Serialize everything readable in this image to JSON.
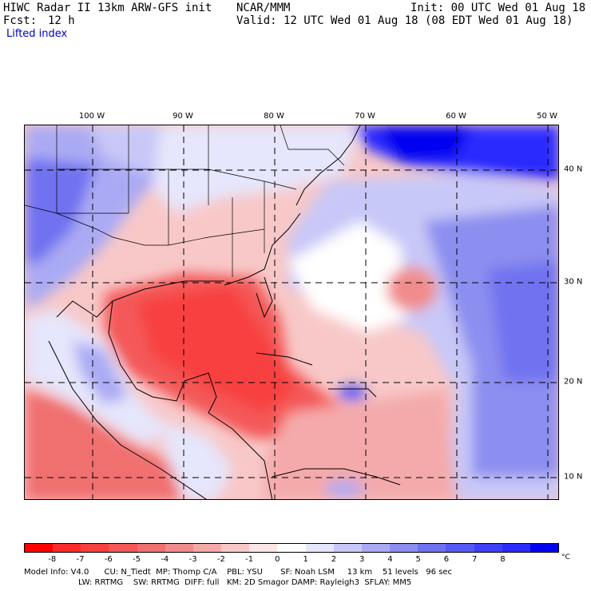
{
  "header": {
    "title": "HIWC Radar II 13km ARW-GFS init",
    "org": "NCAR/MMM",
    "init": "Init: 00 UTC Wed 01 Aug 18",
    "fcst_label": "Fcst:",
    "fcst_value": "12 h",
    "valid": "Valid: 12 UTC Wed 01 Aug 18 (08 EDT Wed 01 Aug 18)",
    "field": "Lifted index"
  },
  "axes": {
    "lon_labels": [
      "100 W",
      "90 W",
      "80 W",
      "70 W",
      "60 W",
      "50 W"
    ],
    "lat_labels": [
      "40 N",
      "30 N",
      "20 N",
      "10 N"
    ]
  },
  "colorbar": {
    "ticks": [
      "-8",
      "-7",
      "-6",
      "-5",
      "-4",
      "-3",
      "-2",
      "-1",
      "0",
      "1",
      "2",
      "3",
      "4",
      "5",
      "6",
      "7",
      "8"
    ],
    "unit": "°C",
    "colors": [
      "#ff0000",
      "#ff2b2b",
      "#f84040",
      "#f45858",
      "#f07070",
      "#f08c8c",
      "#f4aaaa",
      "#f8c8c8",
      "#fce6e6",
      "#ffffff",
      "#e6e6fc",
      "#c8c8f8",
      "#aaaaf4",
      "#8c8ef0",
      "#7072f0",
      "#5858f4",
      "#4040f8",
      "#2b2bff",
      "#0000f0"
    ]
  },
  "footer": {
    "line1": "Model Info: V4.0      CU: N_Tiedt  MP: Thomp C/A    PBL: YSU       SF: Noah LSM     13 km    51 levels   96 sec",
    "line2": "LW: RRTMG    SW: RRTMG  DIFF: full   KM: 2D Smagor DAMP: Rayleigh3  SFLAY: MM5"
  }
}
